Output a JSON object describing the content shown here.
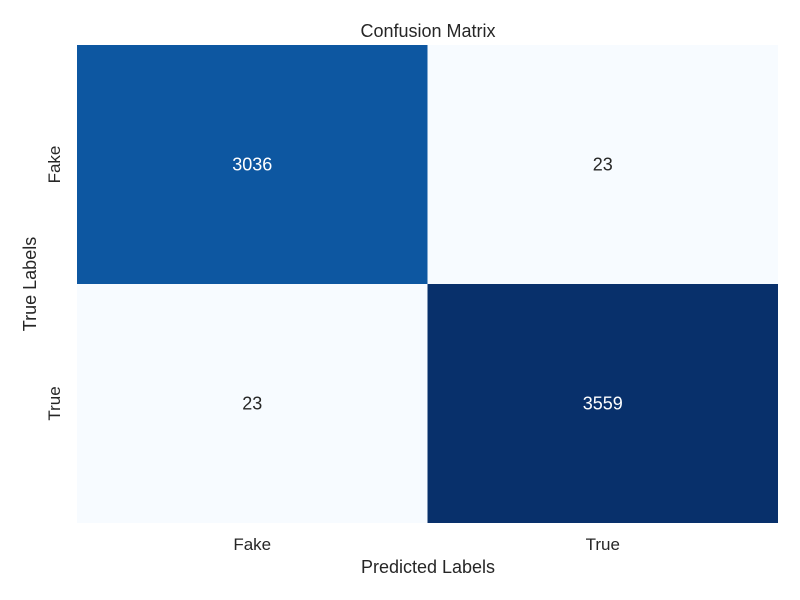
{
  "chart_data": {
    "type": "heatmap",
    "title": "Confusion Matrix",
    "xlabel": "Predicted Labels",
    "ylabel": "True Labels",
    "x_categories": [
      "Fake",
      "True"
    ],
    "y_categories": [
      "Fake",
      "True"
    ],
    "values": [
      [
        3036,
        23
      ],
      [
        23,
        3559
      ]
    ],
    "value_range": [
      23,
      3559
    ],
    "colormap": "Blues",
    "colorbar": false
  }
}
